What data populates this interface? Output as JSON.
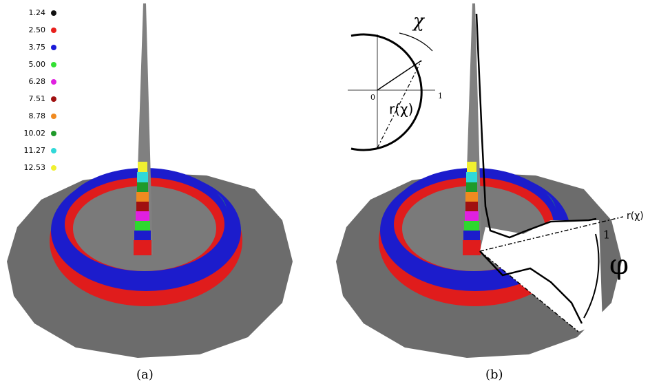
{
  "legend": [
    {
      "label": "1.24",
      "color": "#111111"
    },
    {
      "label": "2.50",
      "color": "#e8201c"
    },
    {
      "label": "3.75",
      "color": "#1a1ad8"
    },
    {
      "label": "5.00",
      "color": "#33e033"
    },
    {
      "label": "6.28",
      "color": "#e020e0"
    },
    {
      "label": "7.51",
      "color": "#a01010"
    },
    {
      "label": "8.78",
      "color": "#f08a20"
    },
    {
      "label": "10.02",
      "color": "#1f9a2a"
    },
    {
      "label": "11.27",
      "color": "#30d8d8"
    },
    {
      "label": "12.53",
      "color": "#f0f030"
    }
  ],
  "panels": [
    {
      "caption": "(a)"
    },
    {
      "caption": "(b)"
    }
  ],
  "inset": {
    "angle_label": "χ",
    "radius_label": "r(χ)",
    "origin_label": "0",
    "unit_label": "1"
  },
  "cut": {
    "axis_label": "r(χ)",
    "unit_label": "1",
    "angle_label": "φ"
  }
}
